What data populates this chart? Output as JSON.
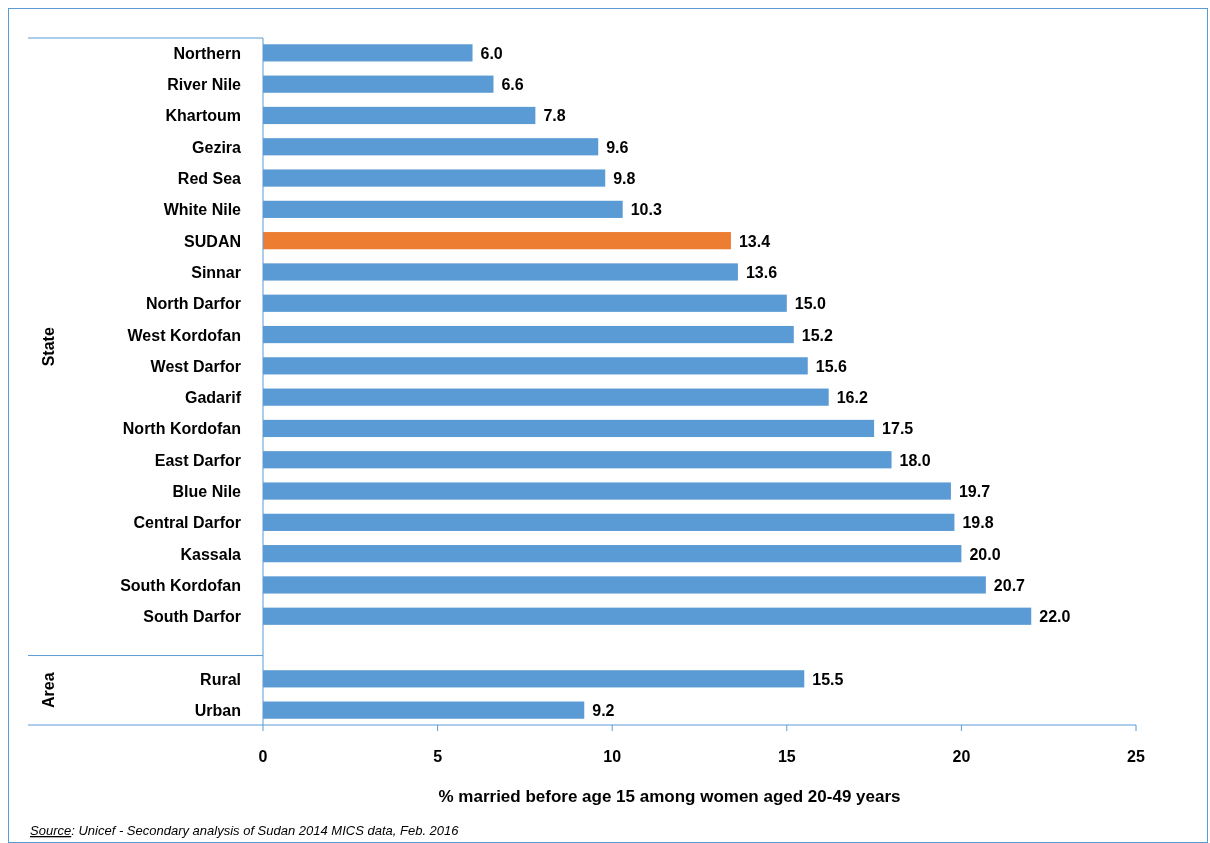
{
  "chart_data": {
    "type": "bar",
    "orientation": "horizontal",
    "categories": [
      "Northern",
      "River Nile",
      "Khartoum",
      "Gezira",
      "Red Sea",
      "White Nile",
      "SUDAN",
      "Sinnar",
      "North Darfor",
      "West Kordofan",
      "West Darfor",
      "Gadarif",
      "North Kordofan",
      "East Darfor",
      "Blue Nile",
      "Central Darfor",
      "Kassala",
      "South Kordofan",
      "South Darfor",
      null,
      "Rural",
      "Urban"
    ],
    "values": [
      6.0,
      6.6,
      7.8,
      9.6,
      9.8,
      10.3,
      13.4,
      13.6,
      15.0,
      15.2,
      15.6,
      16.2,
      17.5,
      18.0,
      19.7,
      19.8,
      20.0,
      20.7,
      22.0,
      null,
      15.5,
      9.2
    ],
    "value_labels": [
      "6.0",
      "6.6",
      "7.8",
      "9.6",
      "9.8",
      "10.3",
      "13.4",
      "13.6",
      "15.0",
      "15.2",
      "15.6",
      "16.2",
      "17.5",
      "18.0",
      "19.7",
      "19.8",
      "20.0",
      "20.7",
      "22.0",
      null,
      "15.5",
      "9.2"
    ],
    "colors": [
      "#5b9bd5",
      "#5b9bd5",
      "#5b9bd5",
      "#5b9bd5",
      "#5b9bd5",
      "#5b9bd5",
      "#ed7d31",
      "#5b9bd5",
      "#5b9bd5",
      "#5b9bd5",
      "#5b9bd5",
      "#5b9bd5",
      "#5b9bd5",
      "#5b9bd5",
      "#5b9bd5",
      "#5b9bd5",
      "#5b9bd5",
      "#5b9bd5",
      "#5b9bd5",
      null,
      "#5b9bd5",
      "#5b9bd5"
    ],
    "xlim": [
      0,
      25
    ],
    "xticks": [
      0,
      5,
      10,
      15,
      20,
      25
    ],
    "xlabel": "% married before age 15 among women aged 20-49 years",
    "annotations": [
      "State",
      "Area",
      "Source: Unicef - Secondary analysis of Sudan 2014 MICS data, Feb. 2016"
    ],
    "grid": false
  }
}
